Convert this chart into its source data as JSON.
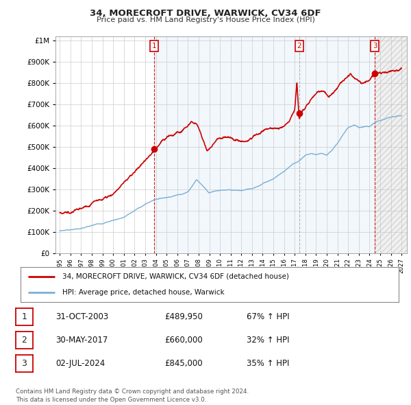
{
  "title": "34, MORECROFT DRIVE, WARWICK, CV34 6DF",
  "subtitle": "Price paid vs. HM Land Registry's House Price Index (HPI)",
  "ytick_values": [
    0,
    100000,
    200000,
    300000,
    400000,
    500000,
    600000,
    700000,
    800000,
    900000,
    1000000
  ],
  "xlim_start": 1994.6,
  "xlim_end": 2027.5,
  "ylim_top": 1000000,
  "transactions": [
    {
      "label": "1",
      "date": 2003.83,
      "price": 489950,
      "vline_style": "dashed_red"
    },
    {
      "label": "2",
      "date": 2017.41,
      "price": 660000,
      "vline_style": "dashed_gray"
    },
    {
      "label": "3",
      "date": 2024.5,
      "price": 845000,
      "vline_style": "dashed_red"
    }
  ],
  "house_color": "#cc0000",
  "hpi_color": "#7ab0d4",
  "shade_color": "#ddeeff",
  "hatch_color": "#cccccc",
  "legend_house_label": "34, MORECROFT DRIVE, WARWICK, CV34 6DF (detached house)",
  "legend_hpi_label": "HPI: Average price, detached house, Warwick",
  "table_rows": [
    {
      "num": "1",
      "date": "31-OCT-2003",
      "price": "£489,950",
      "pct": "67% ↑ HPI"
    },
    {
      "num": "2",
      "date": "30-MAY-2017",
      "price": "£660,000",
      "pct": "32% ↑ HPI"
    },
    {
      "num": "3",
      "date": "02-JUL-2024",
      "price": "£845,000",
      "pct": "35% ↑ HPI"
    }
  ],
  "footnote": "Contains HM Land Registry data © Crown copyright and database right 2024.\nThis data is licensed under the Open Government Licence v3.0.",
  "background_color": "#ffffff",
  "grid_color": "#cccccc",
  "xticks": [
    1995,
    1996,
    1997,
    1998,
    1999,
    2000,
    2001,
    2002,
    2003,
    2004,
    2005,
    2006,
    2007,
    2008,
    2009,
    2010,
    2011,
    2012,
    2013,
    2014,
    2015,
    2016,
    2017,
    2018,
    2019,
    2020,
    2021,
    2022,
    2023,
    2024,
    2025,
    2026,
    2027
  ]
}
